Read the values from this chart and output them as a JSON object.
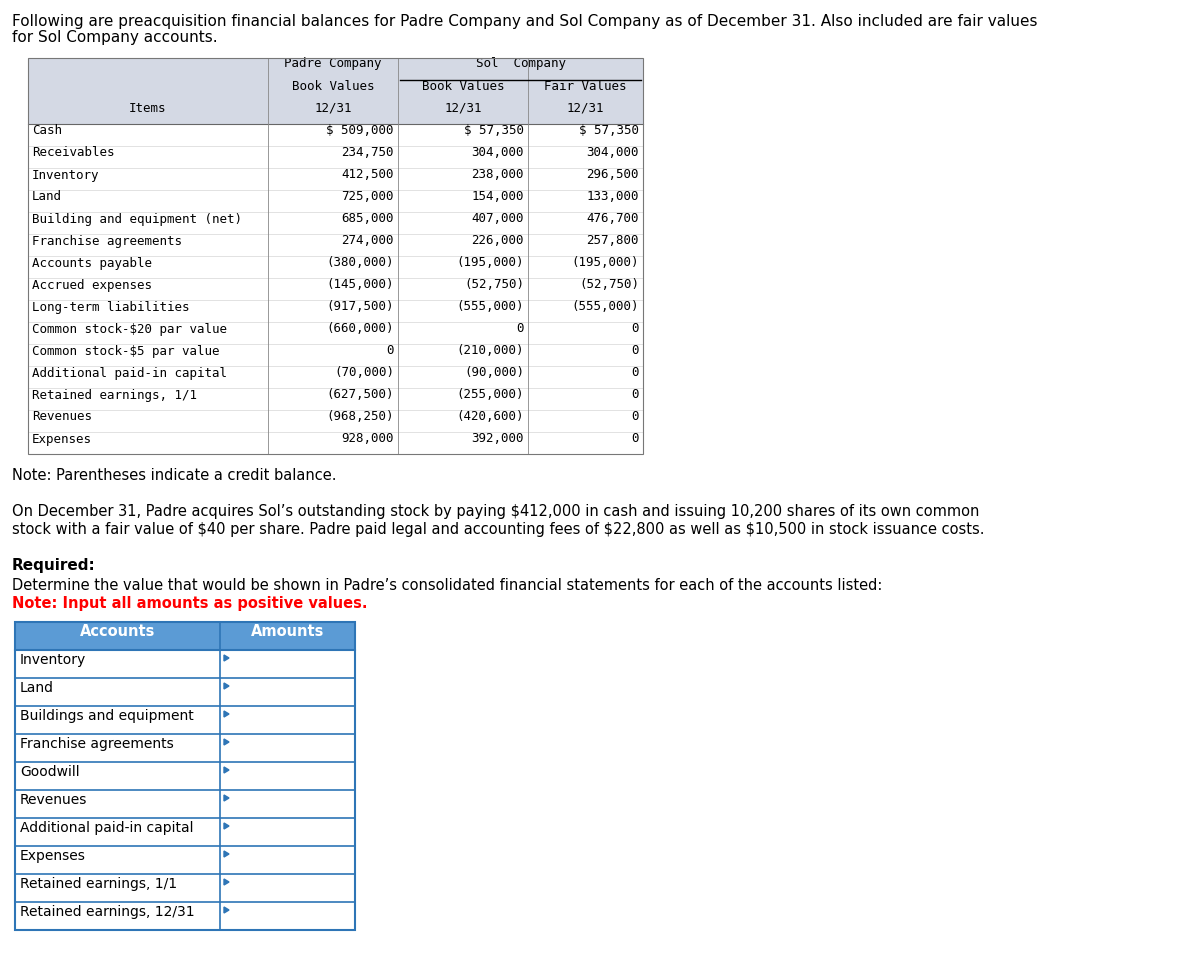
{
  "intro_text_line1": "Following are preacquisition financial balances for Padre Company and Sol Company as of December 31. Also included are fair values",
  "intro_text_line2": "for Sol Company accounts.",
  "table1": {
    "col_header_bg": "#d4d9e4",
    "rows": [
      [
        "Cash",
        "$ 509,000",
        "$ 57,350",
        "$ 57,350"
      ],
      [
        "Receivables",
        "234,750",
        "304,000",
        "304,000"
      ],
      [
        "Inventory",
        "412,500",
        "238,000",
        "296,500"
      ],
      [
        "Land",
        "725,000",
        "154,000",
        "133,000"
      ],
      [
        "Building and equipment (net)",
        "685,000",
        "407,000",
        "476,700"
      ],
      [
        "Franchise agreements",
        "274,000",
        "226,000",
        "257,800"
      ],
      [
        "Accounts payable",
        "(380,000)",
        "(195,000)",
        "(195,000)"
      ],
      [
        "Accrued expenses",
        "(145,000)",
        "(52,750)",
        "(52,750)"
      ],
      [
        "Long-term liabilities",
        "(917,500)",
        "(555,000)",
        "(555,000)"
      ],
      [
        "Common stock-$20 par value",
        "(660,000)",
        "0",
        "0"
      ],
      [
        "Common stock-$5 par value",
        "0",
        "(210,000)",
        "0"
      ],
      [
        "Additional paid-in capital",
        "(70,000)",
        "(90,000)",
        "0"
      ],
      [
        "Retained earnings, 1/1",
        "(627,500)",
        "(255,000)",
        "0"
      ],
      [
        "Revenues",
        "(968,250)",
        "(420,600)",
        "0"
      ],
      [
        "Expenses",
        "928,000",
        "392,000",
        "0"
      ]
    ]
  },
  "note_text": "Note: Parentheses indicate a credit balance.",
  "paragraph_text_line1": "On December 31, Padre acquires Sol’s outstanding stock by paying $412,000 in cash and issuing 10,200 shares of its own common",
  "paragraph_text_line2": "stock with a fair value of $40 per share. Padre paid legal and accounting fees of $22,800 as well as $10,500 in stock issuance costs.",
  "required_text": "Required:",
  "determine_text": "Determine the value that would be shown in Padre’s consolidated financial statements for each of the accounts listed:",
  "note2_text": "Note: Input all amounts as positive values.",
  "table2": {
    "header": [
      "Accounts",
      "Amounts"
    ],
    "header_bg": "#5b9bd5",
    "border_color": "#2e75b6",
    "rows": [
      "Inventory",
      "Land",
      "Buildings and equipment",
      "Franchise agreements",
      "Goodwill",
      "Revenues",
      "Additional paid-in capital",
      "Expenses",
      "Retained earnings, 1/1",
      "Retained earnings, 12/31"
    ]
  },
  "font_mono": "DejaVu Sans Mono",
  "font_sans": "DejaVu Sans",
  "bg_color": "#ffffff"
}
